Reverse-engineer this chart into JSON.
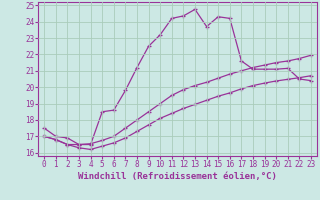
{
  "xlabel": "Windchill (Refroidissement éolien,°C)",
  "bg_color": "#cce8e4",
  "grid_color": "#aaccbb",
  "line_color": "#993399",
  "xlim": [
    -0.5,
    23.5
  ],
  "ylim": [
    15.8,
    25.2
  ],
  "yticks": [
    16,
    17,
    18,
    19,
    20,
    21,
    22,
    23,
    24,
    25
  ],
  "xticks": [
    0,
    1,
    2,
    3,
    4,
    5,
    6,
    7,
    8,
    9,
    10,
    11,
    12,
    13,
    14,
    15,
    16,
    17,
    18,
    19,
    20,
    21,
    22,
    23
  ],
  "s1_x": [
    0,
    1,
    2,
    3,
    4,
    5,
    6,
    7,
    8,
    9,
    10,
    11,
    12,
    13,
    14,
    15,
    16,
    17,
    18,
    19,
    20,
    21,
    22,
    23
  ],
  "s1_y": [
    17.5,
    17.0,
    16.9,
    16.5,
    16.5,
    18.5,
    18.6,
    19.8,
    21.2,
    22.5,
    23.2,
    24.2,
    24.35,
    24.75,
    23.7,
    24.3,
    24.2,
    21.6,
    21.1,
    21.1,
    21.1,
    21.15,
    20.5,
    20.4
  ],
  "s2_x": [
    0,
    1,
    2,
    3,
    4,
    5,
    6,
    7,
    8,
    9,
    10,
    11,
    12,
    13,
    14,
    15,
    16,
    17,
    18,
    19,
    20,
    21,
    22,
    23
  ],
  "s2_y": [
    17.0,
    16.8,
    16.5,
    16.5,
    16.55,
    16.75,
    17.0,
    17.5,
    18.0,
    18.5,
    19.0,
    19.5,
    19.85,
    20.1,
    20.3,
    20.55,
    20.8,
    21.0,
    21.2,
    21.35,
    21.5,
    21.6,
    21.75,
    21.95
  ],
  "s3_x": [
    0,
    1,
    2,
    3,
    4,
    5,
    6,
    7,
    8,
    9,
    10,
    11,
    12,
    13,
    14,
    15,
    16,
    17,
    18,
    19,
    20,
    21,
    22,
    23
  ],
  "s3_y": [
    17.0,
    16.8,
    16.5,
    16.3,
    16.2,
    16.4,
    16.6,
    16.9,
    17.3,
    17.7,
    18.1,
    18.4,
    18.7,
    18.95,
    19.2,
    19.45,
    19.65,
    19.9,
    20.1,
    20.25,
    20.38,
    20.48,
    20.58,
    20.7
  ],
  "xlabel_color": "#993399",
  "xlabel_fontsize": 6.5,
  "tick_fontsize": 5.5,
  "tick_color": "#993399",
  "spine_color": "#993399",
  "lw": 0.9,
  "marker_size": 3.0
}
